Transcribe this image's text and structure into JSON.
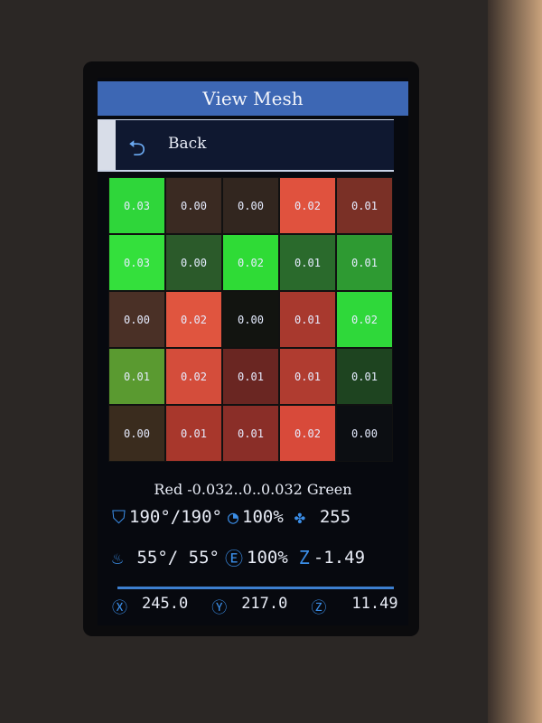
{
  "title": "View Mesh",
  "back_label": "Back",
  "mesh": [
    [
      {
        "v": "0.03",
        "c": "#2fd63a"
      },
      {
        "v": "0.00",
        "c": "#3a2a22"
      },
      {
        "v": "0.00",
        "c": "#32261f"
      },
      {
        "v": "0.02",
        "c": "#e0523e"
      },
      {
        "v": "0.01",
        "c": "#7a3026"
      }
    ],
    [
      {
        "v": "0.03",
        "c": "#34e03c"
      },
      {
        "v": "0.00",
        "c": "#2b5a2a"
      },
      {
        "v": "0.02",
        "c": "#2fdb36"
      },
      {
        "v": "0.01",
        "c": "#2a6a2c"
      },
      {
        "v": "0.01",
        "c": "#2e9a32"
      }
    ],
    [
      {
        "v": "0.00",
        "c": "#4a3026"
      },
      {
        "v": "0.02",
        "c": "#e0553f"
      },
      {
        "v": "0.00",
        "c": "#121410"
      },
      {
        "v": "0.01",
        "c": "#a8392e"
      },
      {
        "v": "0.02",
        "c": "#2fd83a"
      }
    ],
    [
      {
        "v": "0.01",
        "c": "#5a9a30"
      },
      {
        "v": "0.02",
        "c": "#d44d3b"
      },
      {
        "v": "0.01",
        "c": "#6a2622"
      },
      {
        "v": "0.01",
        "c": "#b03c30"
      },
      {
        "v": "0.01",
        "c": "#1e4420"
      }
    ],
    [
      {
        "v": "0.00",
        "c": "#3a2c1e"
      },
      {
        "v": "0.01",
        "c": "#a8372c"
      },
      {
        "v": "0.01",
        "c": "#8a2e28"
      },
      {
        "v": "0.02",
        "c": "#d84a3a"
      },
      {
        "v": "0.00",
        "c": "#0c0e12"
      }
    ]
  ],
  "legend": "Red -0.032..0..0.032 Green",
  "status": {
    "nozzle_temp": "190°/190°",
    "speed": "100%",
    "fan": "255",
    "bed_temp": " 55°/ 55°",
    "flow": "100%",
    "z_offset": "-1.49"
  },
  "position": {
    "x": "245.0",
    "y": "217.0",
    "z": "11.49"
  },
  "accent": "#3d67b4"
}
